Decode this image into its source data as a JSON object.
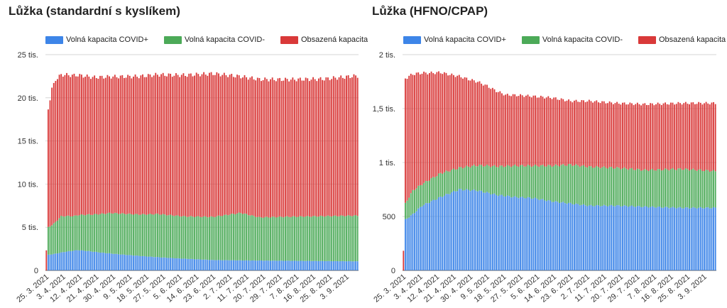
{
  "chart_data": [
    {
      "type": "bar",
      "stacked": true,
      "title": "Lůžka (standardní s kyslíkem)",
      "legend_position": "top",
      "grid": true,
      "ylim": [
        0,
        25000
      ],
      "y_ticks": [
        "0",
        "5 tis.",
        "10 tis.",
        "15 tis.",
        "20 tis.",
        "25 tis."
      ],
      "y_tick_values": [
        0,
        5000,
        10000,
        15000,
        20000,
        25000
      ],
      "x_ticks": [
        "25. 3. 2021",
        "3. 4. 2021",
        "12. 4. 2021",
        "21. 4. 2021",
        "30. 4. 2021",
        "9. 5. 2021",
        "18. 5. 2021",
        "27. 5. 2021",
        "5. 6. 2021",
        "14. 6. 2021",
        "23. 6. 2021",
        "2. 7. 2021",
        "11. 7. 2021",
        "20. 7. 2021",
        "29. 7. 2021",
        "7. 8. 2021",
        "16. 8. 2021",
        "25. 8. 2021",
        "3. 9. 2021"
      ],
      "x_range": [
        "25. 3. 2021",
        "8. 9. 2021"
      ],
      "series": [
        {
          "name": "Volná kapacita COVID+",
          "color": "#3d85e8",
          "keyframes": [
            [
              0,
              0
            ],
            [
              1,
              1800
            ],
            [
              4,
              1900
            ],
            [
              10,
              2150
            ],
            [
              17,
              2350
            ],
            [
              22,
              2250
            ],
            [
              30,
              2050
            ],
            [
              40,
              1850
            ],
            [
              55,
              1600
            ],
            [
              70,
              1400
            ],
            [
              90,
              1200
            ],
            [
              110,
              1150
            ],
            [
              140,
              1100
            ],
            [
              168,
              1050
            ]
          ]
        },
        {
          "name": "Volná kapacita COVID-",
          "color": "#4caa58",
          "keyframes": [
            [
              0,
              0
            ],
            [
              1,
              3200
            ],
            [
              4,
              3500
            ],
            [
              8,
              4200
            ],
            [
              15,
              4000
            ],
            [
              25,
              4300
            ],
            [
              35,
              4700
            ],
            [
              50,
              4800
            ],
            [
              60,
              5000
            ],
            [
              75,
              4900
            ],
            [
              90,
              5000
            ],
            [
              105,
              5500
            ],
            [
              115,
              5000
            ],
            [
              130,
              5100
            ],
            [
              150,
              5200
            ],
            [
              168,
              5300
            ]
          ]
        },
        {
          "name": "Obsazená kapacita",
          "color": "#d93939",
          "keyframes": [
            [
              0,
              2300
            ],
            [
              1,
              13700
            ],
            [
              3,
              15800
            ],
            [
              5,
              16500
            ],
            [
              8,
              16400
            ],
            [
              15,
              16300
            ],
            [
              25,
              15900
            ],
            [
              35,
              15800
            ],
            [
              50,
              16000
            ],
            [
              70,
              16300
            ],
            [
              90,
              16600
            ],
            [
              105,
              15800
            ],
            [
              115,
              16000
            ],
            [
              130,
              15900
            ],
            [
              150,
              15900
            ],
            [
              168,
              16200
            ]
          ]
        }
      ]
    },
    {
      "type": "bar",
      "stacked": true,
      "title": "Lůžka (HFNO/CPAP)",
      "legend_position": "top",
      "grid": true,
      "ylim": [
        0,
        2000
      ],
      "y_ticks": [
        "0",
        "500",
        "1 tis.",
        "1,5 tis.",
        "2 tis."
      ],
      "y_tick_values": [
        0,
        500,
        1000,
        1500,
        2000
      ],
      "x_ticks": [
        "25. 3. 2021",
        "3. 4. 2021",
        "12. 4. 2021",
        "21. 4. 2021",
        "30. 4. 2021",
        "9. 5. 2021",
        "18. 5. 2021",
        "27. 5. 2021",
        "5. 6. 2021",
        "14. 6. 2021",
        "23. 6. 2021",
        "2. 7. 2021",
        "11. 7. 2021",
        "20. 7. 2021",
        "29. 7. 2021",
        "7. 8. 2021",
        "16. 8. 2021",
        "25. 8. 2021",
        "3. 9. 2021"
      ],
      "x_range": [
        "25. 3. 2021",
        "8. 9. 2021"
      ],
      "series": [
        {
          "name": "Volná kapacita COVID+",
          "color": "#3d85e8",
          "keyframes": [
            [
              0,
              0
            ],
            [
              1,
              470
            ],
            [
              5,
              520
            ],
            [
              10,
              600
            ],
            [
              20,
              680
            ],
            [
              30,
              750
            ],
            [
              40,
              740
            ],
            [
              50,
              700
            ],
            [
              60,
              680
            ],
            [
              70,
              670
            ],
            [
              80,
              640
            ],
            [
              90,
              620
            ],
            [
              100,
              600
            ],
            [
              115,
              600
            ],
            [
              130,
              590
            ],
            [
              150,
              580
            ],
            [
              168,
              580
            ]
          ]
        },
        {
          "name": "Volná kapacita COVID-",
          "color": "#4caa58",
          "keyframes": [
            [
              0,
              0
            ],
            [
              1,
              150
            ],
            [
              5,
              220
            ],
            [
              10,
              200
            ],
            [
              20,
              220
            ],
            [
              30,
              200
            ],
            [
              45,
              250
            ],
            [
              60,
              290
            ],
            [
              70,
              300
            ],
            [
              80,
              330
            ],
            [
              90,
              360
            ],
            [
              100,
              360
            ],
            [
              115,
              350
            ],
            [
              130,
              340
            ],
            [
              150,
              360
            ],
            [
              168,
              340
            ]
          ]
        },
        {
          "name": "Obsazená kapacita",
          "color": "#d93939",
          "keyframes": [
            [
              0,
              180
            ],
            [
              1,
              1160
            ],
            [
              5,
              1080
            ],
            [
              10,
              1030
            ],
            [
              15,
              980
            ],
            [
              25,
              890
            ],
            [
              35,
              810
            ],
            [
              45,
              740
            ],
            [
              55,
              660
            ],
            [
              65,
              650
            ],
            [
              80,
              630
            ],
            [
              90,
              590
            ],
            [
              100,
              610
            ],
            [
              115,
              600
            ],
            [
              130,
              610
            ],
            [
              150,
              610
            ],
            [
              168,
              630
            ]
          ]
        }
      ]
    }
  ]
}
